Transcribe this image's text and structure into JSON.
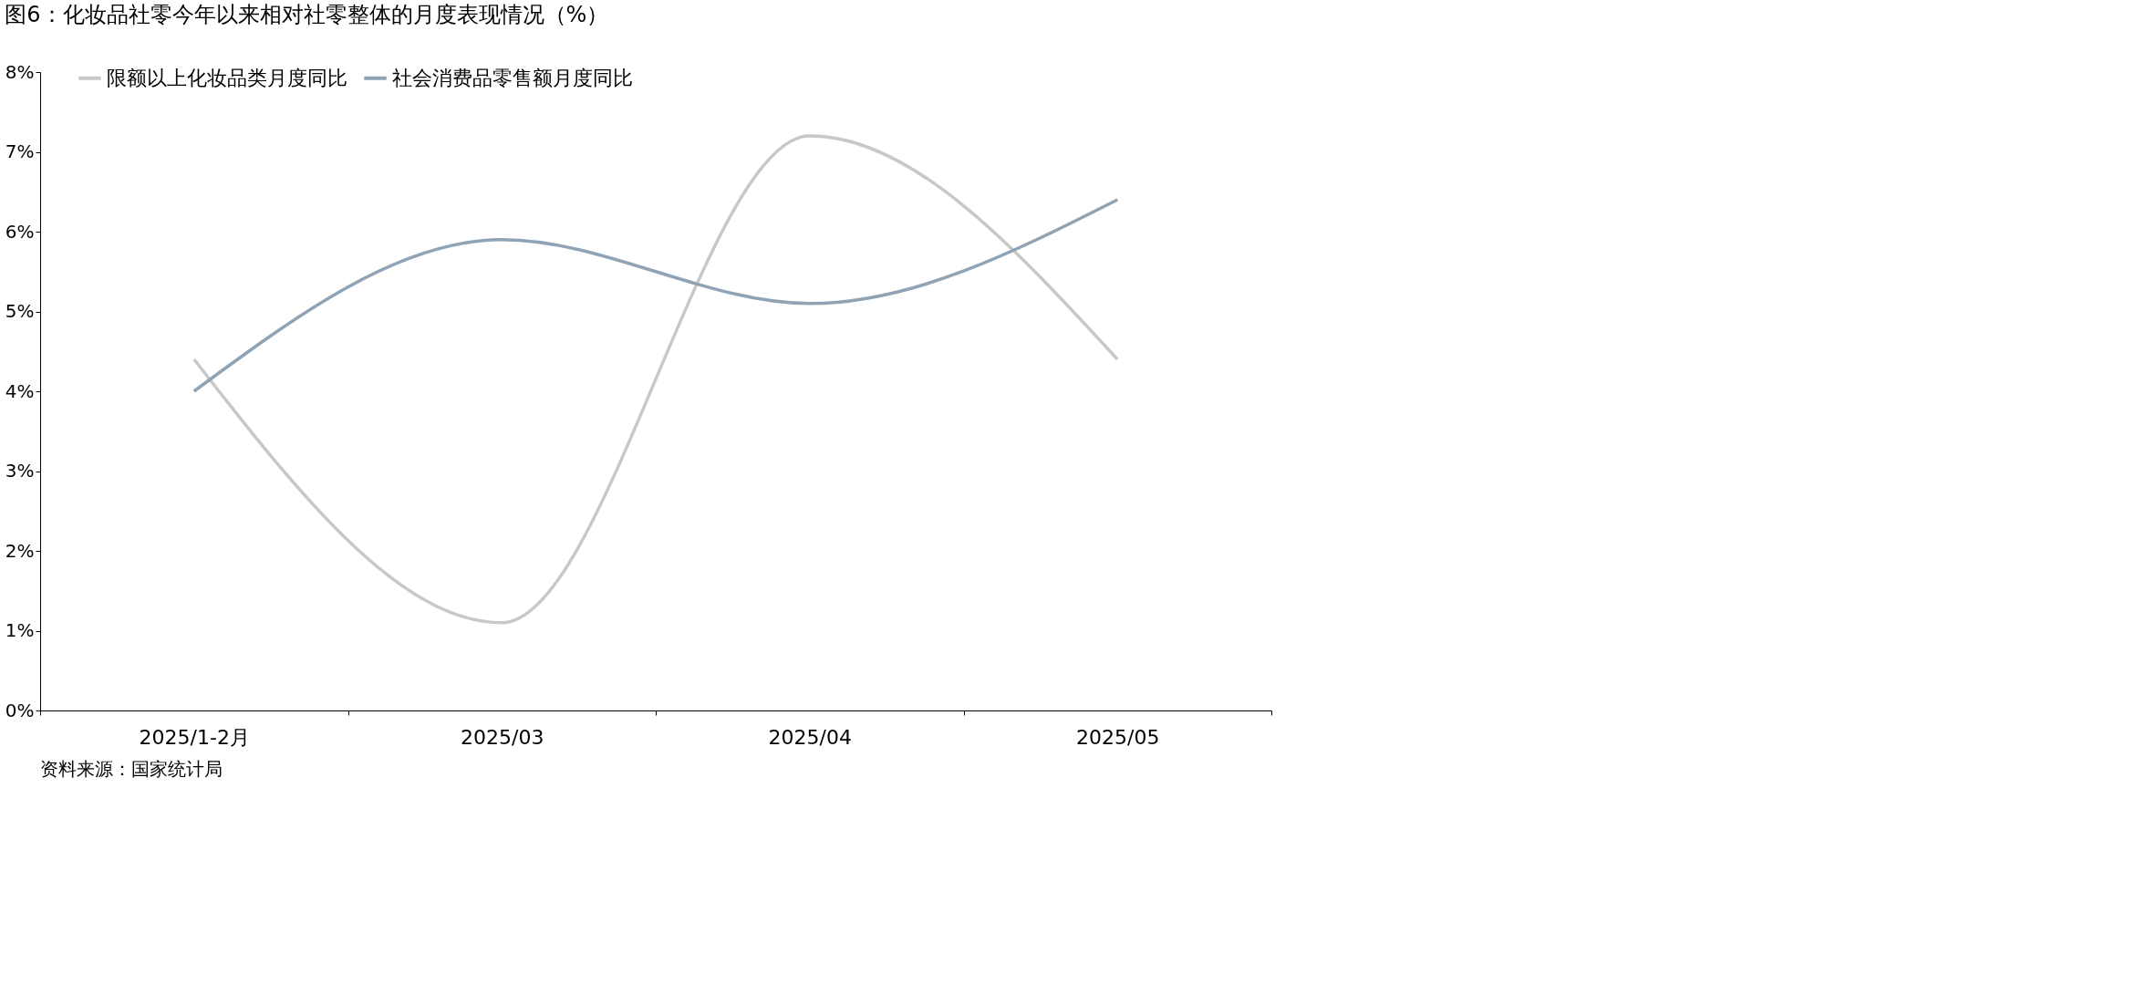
{
  "chart_data": {
    "type": "line",
    "title": "图6：化妆品社零今年以来相对社零整体的月度表现情况（%）",
    "categories": [
      "2025/1-2月",
      "2025/03",
      "2025/04",
      "2025/05"
    ],
    "series": [
      {
        "name": "限额以上化妆品类月度同比",
        "color": "#c8c8c8",
        "values": [
          4.4,
          1.1,
          7.2,
          4.4
        ]
      },
      {
        "name": "社会消费品零售额月度同比",
        "color": "#8fa3b5",
        "values": [
          4.0,
          5.9,
          5.1,
          6.4
        ]
      }
    ],
    "ylim": [
      0,
      8
    ],
    "yticks": [
      {
        "value": 0,
        "label": "0%"
      },
      {
        "value": 1,
        "label": "1%"
      },
      {
        "value": 2,
        "label": "2%"
      },
      {
        "value": 3,
        "label": "3%"
      },
      {
        "value": 4,
        "label": "4%"
      },
      {
        "value": 5,
        "label": "5%"
      },
      {
        "value": 6,
        "label": "6%"
      },
      {
        "value": 7,
        "label": "7%"
      },
      {
        "value": 8,
        "label": "8%"
      }
    ],
    "grid": false,
    "legend": "top",
    "marker": "none",
    "line_style": "solid",
    "annotations": [
      "资料来源：国家统计局"
    ]
  }
}
